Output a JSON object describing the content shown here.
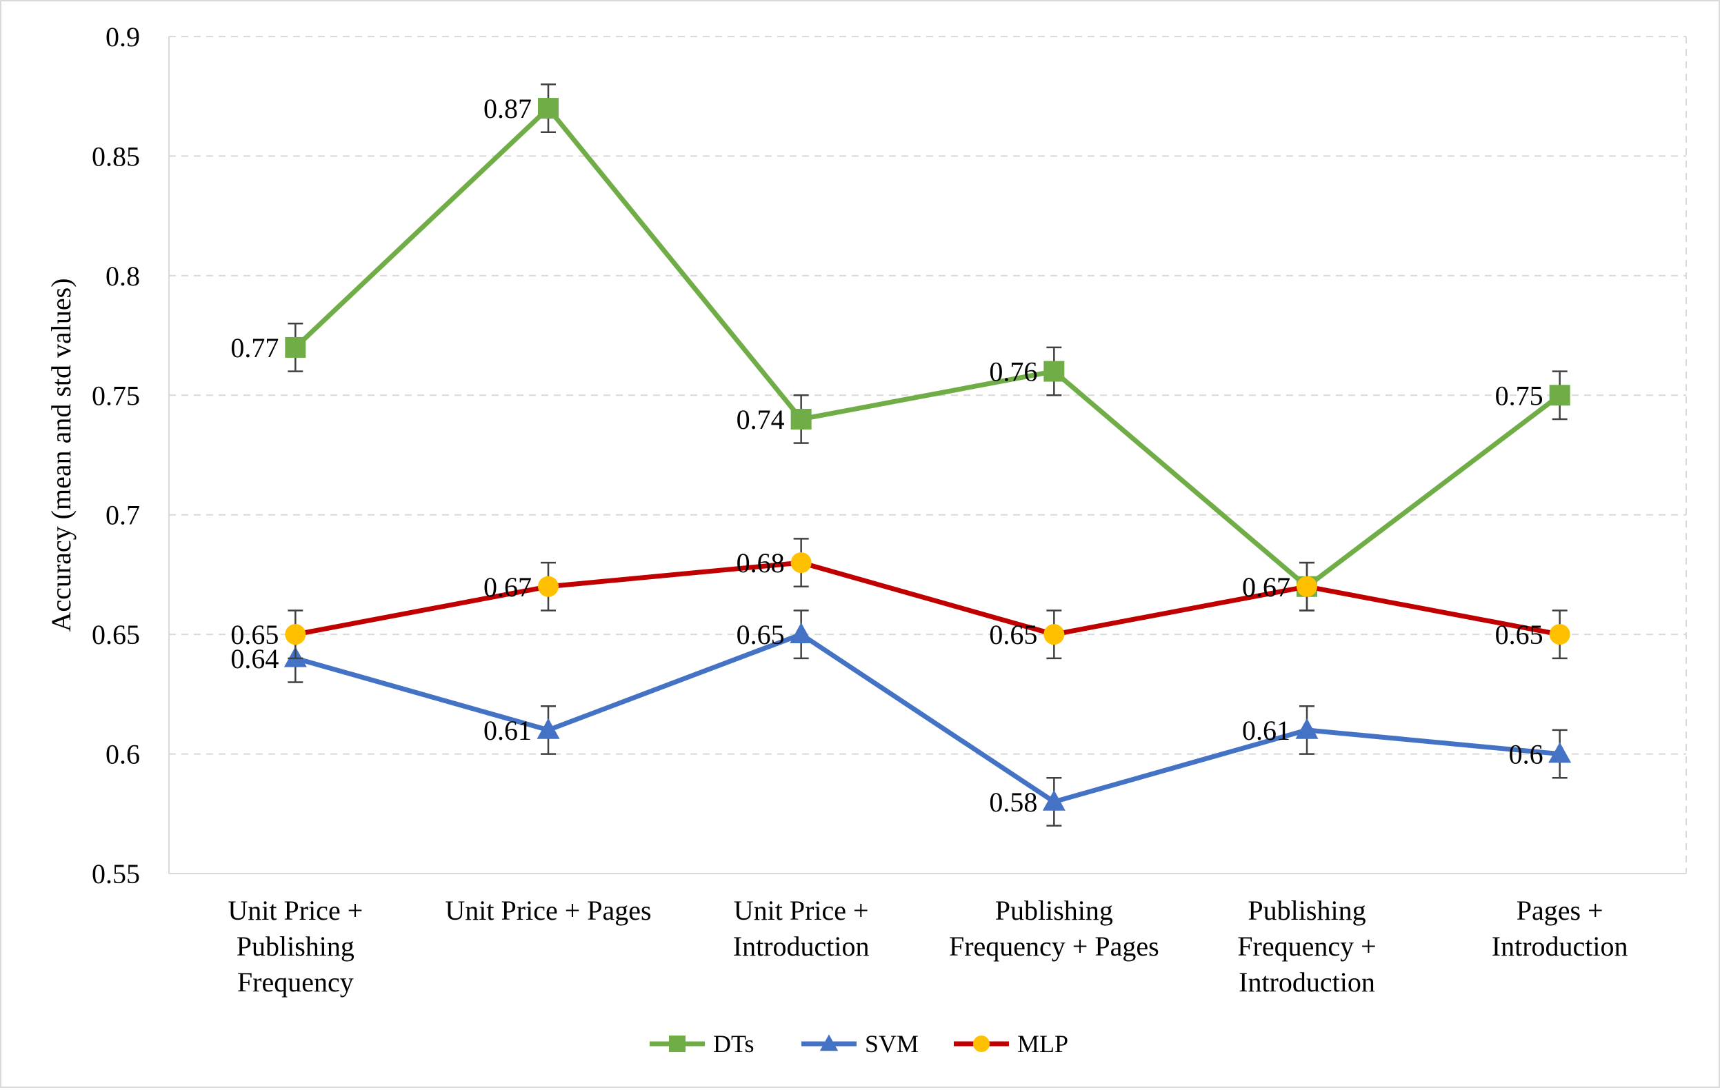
{
  "chart_data": {
    "type": "line",
    "title": "",
    "xlabel": "",
    "ylabel": "Accuracy (mean and std values)",
    "ylim": [
      0.55,
      0.9
    ],
    "yticks": [
      0.55,
      0.6,
      0.65,
      0.7,
      0.75,
      0.8,
      0.85,
      0.9
    ],
    "ytick_labels": [
      "0.55",
      "0.6",
      "0.65",
      "0.7",
      "0.75",
      "0.8",
      "0.85",
      "0.9"
    ],
    "grid": true,
    "legend_position": "bottom",
    "categories": [
      [
        "Unit Price +",
        "Publishing",
        "Frequency"
      ],
      [
        "Unit Price + Pages"
      ],
      [
        "Unit Price +",
        "Introduction"
      ],
      [
        "Publishing",
        "Frequency + Pages"
      ],
      [
        "Publishing",
        "Frequency +",
        "Introduction"
      ],
      [
        "Pages +",
        "Introduction"
      ]
    ],
    "series": [
      {
        "name": "DTs",
        "marker": "square",
        "line_color": "#70ad47",
        "marker_color": "#70ad47",
        "values": [
          0.77,
          0.87,
          0.74,
          0.76,
          0.67,
          0.75
        ],
        "std": [
          0.01,
          0.01,
          0.01,
          0.01,
          0.01,
          0.01
        ],
        "labels": [
          "0.77",
          "0.87",
          "0.74",
          "0.76",
          "0.67",
          "0.75"
        ]
      },
      {
        "name": "SVM",
        "marker": "triangle",
        "line_color": "#4472c4",
        "marker_color": "#4472c4",
        "values": [
          0.64,
          0.61,
          0.65,
          0.58,
          0.61,
          0.6
        ],
        "std": [
          0.01,
          0.01,
          0.01,
          0.01,
          0.01,
          0.01
        ],
        "labels": [
          "0.64",
          "0.61",
          "0.65",
          "0.58",
          "0.61",
          "0.6"
        ]
      },
      {
        "name": "MLP",
        "marker": "circle",
        "line_color": "#c00000",
        "marker_color": "#ffc000",
        "values": [
          0.65,
          0.67,
          0.68,
          0.65,
          0.67,
          0.65
        ],
        "std": [
          0.01,
          0.01,
          0.01,
          0.01,
          0.01,
          0.01
        ],
        "labels": [
          "0.65",
          "0.67",
          "0.68",
          "0.65",
          "0.67",
          "0.65"
        ]
      }
    ]
  }
}
